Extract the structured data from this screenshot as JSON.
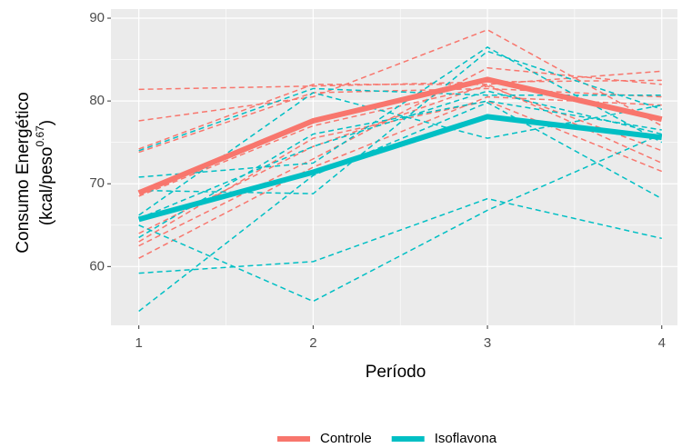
{
  "chart_data": {
    "type": "line",
    "x_label": "Período",
    "y_label": {
      "line1": "Consumo Energético",
      "line2": "(kcal/peso",
      "sup": "0.67",
      "end": ")"
    },
    "x": [
      1,
      2,
      3,
      4
    ],
    "xlim": [
      0.84,
      4.09
    ],
    "xticks": [
      1,
      2,
      3,
      4
    ],
    "ylim": [
      52.9,
      91.1
    ],
    "yticks": [
      60,
      70,
      80,
      90
    ],
    "grid": true,
    "legend": "bottom",
    "series": [
      {
        "name": "Controle",
        "color": "#F8766D",
        "values": [
          68.9,
          77.6,
          82.6,
          77.8
        ],
        "individuals": [
          [
            81.4,
            81.8,
            82.3,
            82.5
          ],
          [
            77.6,
            80.5,
            88.6,
            77.0
          ],
          [
            74.2,
            82.0,
            82.0,
            83.6
          ],
          [
            73.8,
            81.0,
            81.5,
            80.5
          ],
          [
            68.5,
            77.0,
            81.8,
            74.0
          ],
          [
            64.0,
            74.5,
            82.0,
            72.5
          ],
          [
            63.0,
            75.5,
            80.0,
            71.5
          ],
          [
            61.0,
            72.0,
            80.5,
            79.5
          ],
          [
            62.5,
            73.0,
            84.0,
            82.0
          ]
        ]
      },
      {
        "name": "Isoflavona",
        "color": "#00BFC4",
        "values": [
          65.7,
          71.4,
          78.1,
          75.6
        ],
        "individuals": [
          [
            74.0,
            81.5,
            80.7,
            80.7
          ],
          [
            70.8,
            72.5,
            86.5,
            75.0
          ],
          [
            69.2,
            68.8,
            86.0,
            79.0
          ],
          [
            66.2,
            81.0,
            75.5,
            79.5
          ],
          [
            65.8,
            74.5,
            81.2,
            76.0
          ],
          [
            63.5,
            76.0,
            80.0,
            76.5
          ],
          [
            59.2,
            60.6,
            68.2,
            63.4
          ],
          [
            65.0,
            55.8,
            66.8,
            76.0
          ],
          [
            54.6,
            71.0,
            79.8,
            68.2
          ]
        ]
      }
    ]
  }
}
